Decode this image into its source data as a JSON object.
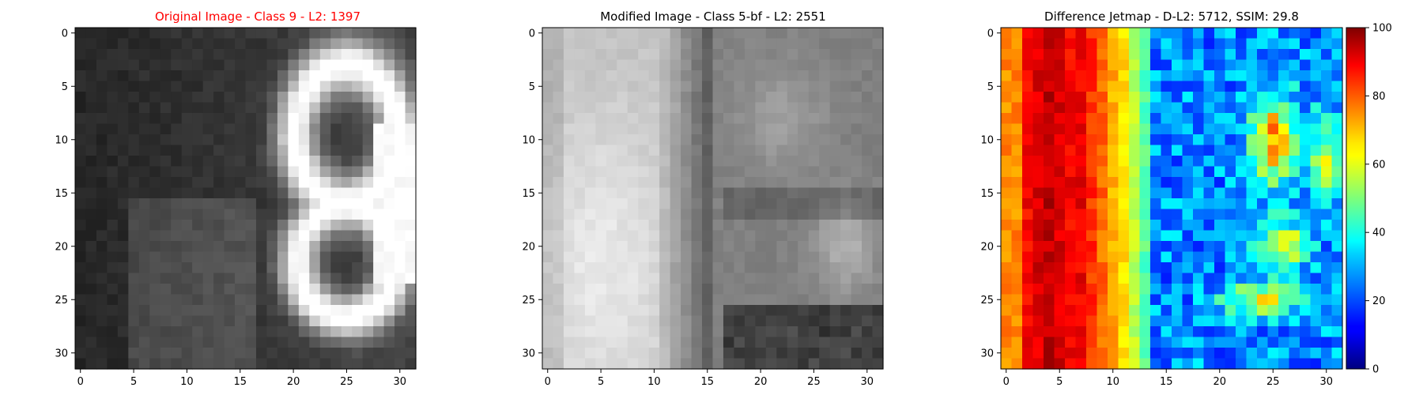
{
  "chart_data": [
    {
      "type": "heatmap",
      "title": "Original Image - Class 9 - L2: 1397",
      "title_color": "#ff0000",
      "colormap": "gray",
      "x_ticks": [
        0,
        5,
        10,
        15,
        20,
        25,
        30
      ],
      "y_ticks": [
        0,
        5,
        10,
        15,
        20,
        25,
        30
      ],
      "xlim": [
        -0.5,
        31.5
      ],
      "ylim": [
        31.5,
        -0.5
      ],
      "grid_size": [
        32,
        32
      ]
    },
    {
      "type": "heatmap",
      "title": "Modified Image - Class 5-bf - L2: 2551",
      "title_color": "#000000",
      "colormap": "gray",
      "x_ticks": [
        0,
        5,
        10,
        15,
        20,
        25,
        30
      ],
      "y_ticks": [
        0,
        5,
        10,
        15,
        20,
        25,
        30
      ],
      "xlim": [
        -0.5,
        31.5
      ],
      "ylim": [
        31.5,
        -0.5
      ],
      "grid_size": [
        32,
        32
      ]
    },
    {
      "type": "heatmap",
      "title": "Difference Jetmap - D-L2: 5712, SSIM: 29.8",
      "title_color": "#000000",
      "colormap": "jet",
      "x_ticks": [
        0,
        5,
        10,
        15,
        20,
        25,
        30
      ],
      "y_ticks": [
        0,
        5,
        10,
        15,
        20,
        25,
        30
      ],
      "xlim": [
        -0.5,
        31.5
      ],
      "ylim": [
        31.5,
        -0.5
      ],
      "grid_size": [
        32,
        32
      ],
      "colorbar": {
        "range": [
          0,
          100
        ],
        "ticks": [
          0,
          20,
          40,
          60,
          80,
          100
        ]
      }
    }
  ]
}
